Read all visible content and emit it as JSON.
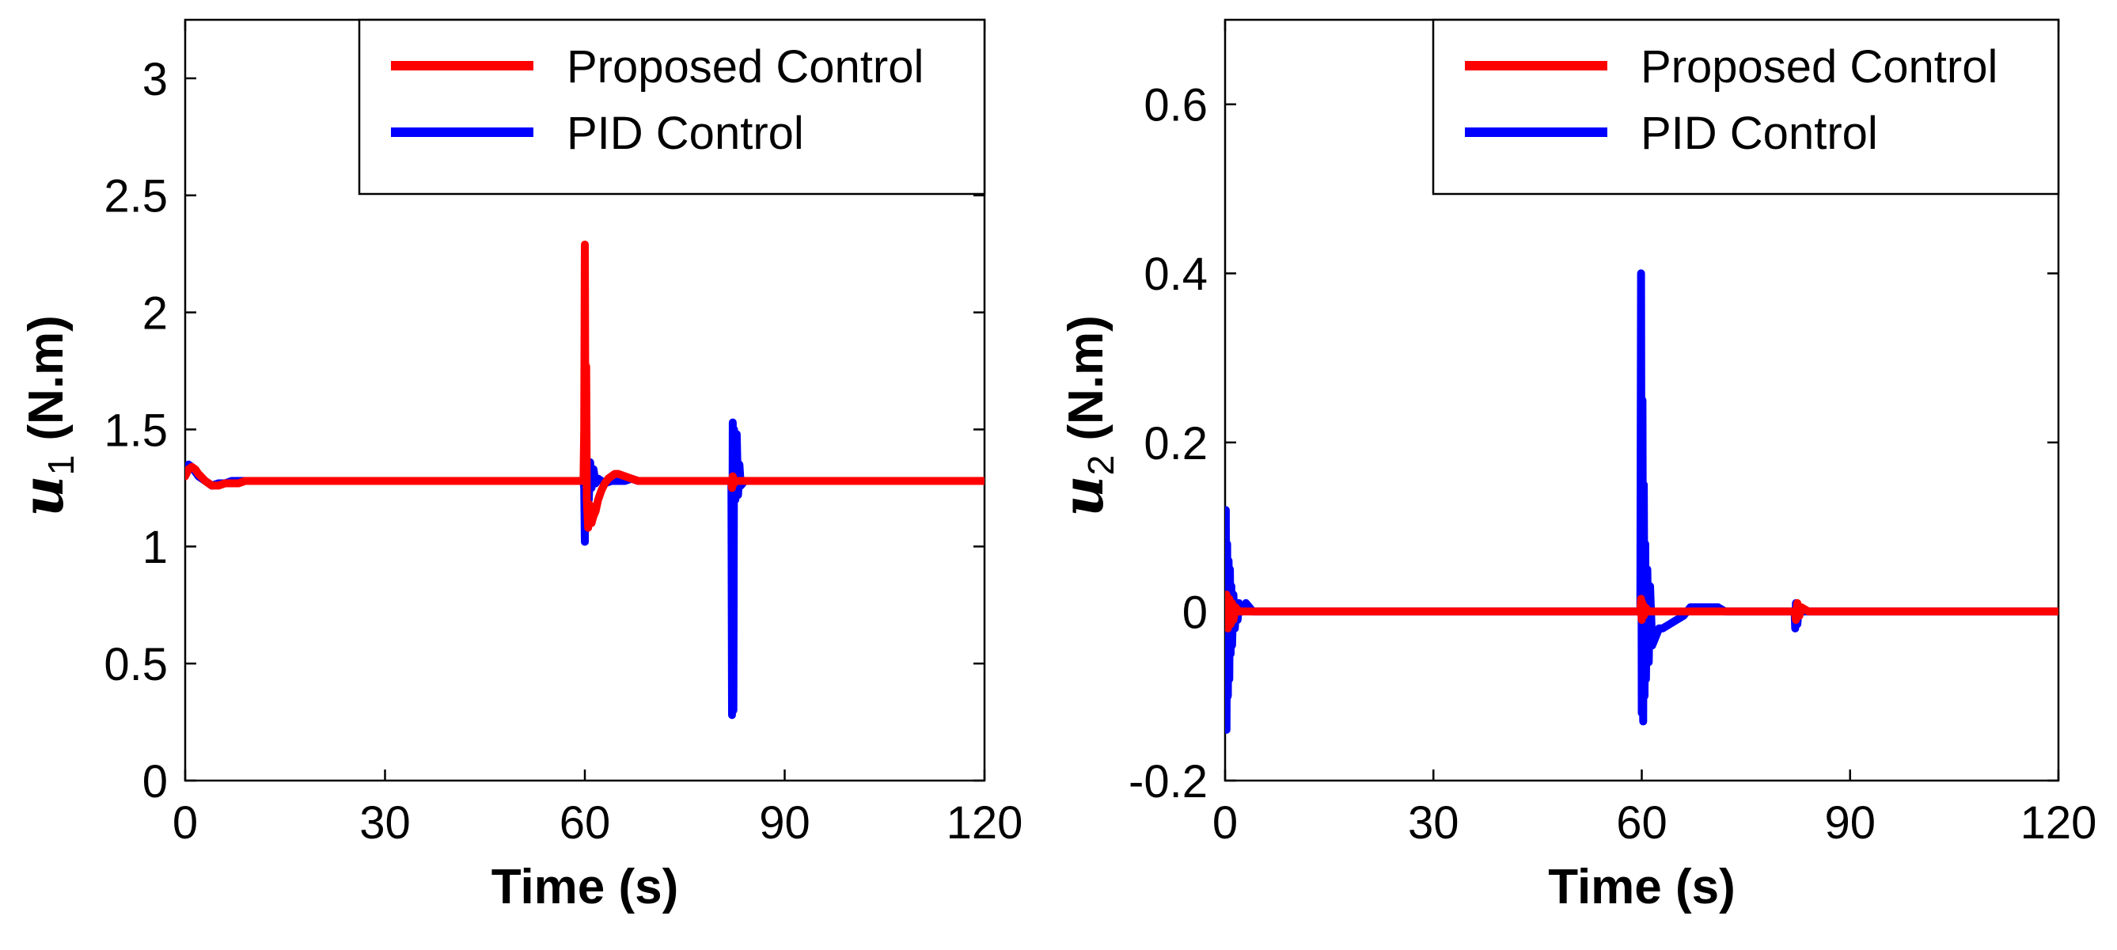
{
  "chart_data": [
    {
      "type": "line",
      "title": "",
      "xlabel": "Time (s)",
      "ylabel_symbol": "u",
      "ylabel_subscript": "1",
      "ylabel_unit": "(N.m)",
      "xlim": [
        0,
        120
      ],
      "ylim": [
        0,
        3.25
      ],
      "xticks": [
        0,
        30,
        60,
        90,
        120
      ],
      "xtick_labels": [
        "0",
        "30",
        "60",
        "90",
        "120"
      ],
      "yticks": [
        0,
        0.5,
        1,
        1.5,
        2,
        2.5,
        3
      ],
      "ytick_labels": [
        "0",
        "0.5",
        "1",
        "1.5",
        "2",
        "2.5",
        "3"
      ],
      "legend_position": "top-right",
      "grid": false,
      "series": [
        {
          "name": "PID Control",
          "color": "#0000ff",
          "x": [
            0,
            0.5,
            1,
            1.5,
            2,
            3,
            4,
            5,
            6,
            7,
            8,
            9,
            10,
            59.8,
            59.9,
            60.0,
            60.1,
            60.2,
            60.4,
            60.6,
            60.8,
            61.0,
            61.3,
            61.6,
            62,
            62.5,
            63,
            64,
            65,
            66,
            67,
            68,
            82.0,
            82.1,
            82.2,
            82.3,
            82.4,
            82.6,
            82.8,
            83.0,
            83.2,
            83.4,
            84,
            120
          ],
          "y": [
            1.32,
            1.35,
            1.34,
            1.32,
            1.3,
            1.28,
            1.26,
            1.27,
            1.27,
            1.28,
            1.28,
            1.28,
            1.28,
            1.28,
            1.25,
            1.02,
            1.36,
            1.12,
            1.32,
            1.2,
            1.36,
            1.25,
            1.33,
            1.27,
            1.29,
            1.28,
            1.27,
            1.28,
            1.28,
            1.28,
            1.29,
            1.28,
            1.28,
            0.28,
            1.53,
            0.3,
            1.5,
            1.2,
            1.48,
            1.22,
            1.35,
            1.26,
            1.28,
            1.28
          ]
        },
        {
          "name": "Proposed Control",
          "color": "#ff0000",
          "x": [
            0,
            0.5,
            1,
            1.5,
            2,
            3,
            4,
            5,
            6,
            7,
            8,
            9,
            10,
            59.8,
            59.9,
            60.0,
            60.1,
            60.2,
            60.3,
            60.5,
            60.7,
            61.0,
            61.3,
            61.6,
            62,
            62.5,
            63,
            63.5,
            64,
            64.5,
            65,
            66,
            67,
            68,
            82.0,
            82.1,
            82.2,
            82.4,
            82.6,
            83.0,
            84,
            120
          ],
          "y": [
            1.3,
            1.33,
            1.34,
            1.33,
            1.31,
            1.28,
            1.26,
            1.26,
            1.27,
            1.27,
            1.27,
            1.28,
            1.28,
            1.28,
            1.5,
            2.29,
            1.3,
            1.77,
            1.2,
            1.08,
            1.18,
            1.1,
            1.13,
            1.15,
            1.2,
            1.24,
            1.27,
            1.29,
            1.3,
            1.31,
            1.31,
            1.3,
            1.29,
            1.28,
            1.28,
            1.25,
            1.3,
            1.27,
            1.28,
            1.28,
            1.28,
            1.28
          ]
        }
      ]
    },
    {
      "type": "line",
      "title": "",
      "xlabel": "Time (s)",
      "ylabel_symbol": "u",
      "ylabel_subscript": "2",
      "ylabel_unit": "(N.m)",
      "xlim": [
        0,
        120
      ],
      "ylim": [
        -0.2,
        0.7
      ],
      "xticks": [
        0,
        30,
        60,
        90,
        120
      ],
      "xtick_labels": [
        "0",
        "30",
        "60",
        "90",
        "120"
      ],
      "yticks": [
        -0.2,
        0,
        0.2,
        0.4,
        0.6
      ],
      "ytick_labels": [
        "-0.2",
        "0",
        "0.2",
        "0.4",
        "0.6"
      ],
      "legend_position": "top-right",
      "grid": false,
      "series": [
        {
          "name": "PID Control",
          "color": "#0000ff",
          "x": [
            0,
            0.1,
            0.2,
            0.3,
            0.4,
            0.5,
            0.6,
            0.7,
            0.8,
            0.9,
            1.0,
            1.2,
            1.4,
            1.6,
            1.8,
            2.0,
            2.5,
            3,
            4,
            5,
            59.8,
            59.9,
            60.0,
            60.1,
            60.2,
            60.3,
            60.4,
            60.5,
            60.6,
            60.8,
            61.0,
            61.2,
            61.5,
            62,
            62.5,
            63,
            64,
            65,
            66,
            67,
            68,
            70,
            71,
            72,
            82.0,
            82.1,
            82.2,
            82.4,
            82.6,
            83,
            84,
            120
          ],
          "y": [
            0,
            0.12,
            -0.14,
            0.08,
            -0.1,
            0.06,
            -0.08,
            0.05,
            -0.05,
            0.03,
            -0.04,
            0.02,
            -0.02,
            0.01,
            -0.01,
            0.01,
            0,
            0.01,
            0,
            0,
            0,
            0.4,
            -0.12,
            0.25,
            -0.13,
            0.15,
            -0.1,
            0.08,
            -0.08,
            0.05,
            -0.06,
            0.03,
            -0.04,
            -0.03,
            -0.02,
            -0.02,
            -0.015,
            -0.01,
            -0.005,
            0.005,
            0.005,
            0.005,
            0.005,
            0,
            0,
            -0.02,
            0.01,
            -0.015,
            0.005,
            0,
            0,
            0
          ]
        },
        {
          "name": "Proposed Control",
          "color": "#ff0000",
          "x": [
            0,
            0.2,
            0.4,
            0.6,
            0.8,
            1.0,
            1.2,
            1.5,
            2,
            3,
            5,
            59.8,
            59.9,
            60.0,
            60.1,
            60.3,
            60.5,
            61,
            62,
            82.0,
            82.2,
            82.4,
            82.7,
            83,
            84,
            120
          ],
          "y": [
            0,
            0.02,
            -0.02,
            0.015,
            -0.015,
            0.01,
            -0.01,
            0.005,
            0,
            0,
            0,
            0,
            0.015,
            -0.01,
            0.01,
            -0.005,
            0.005,
            0,
            0,
            0,
            -0.01,
            0.01,
            -0.005,
            0.005,
            0,
            0
          ]
        }
      ]
    }
  ]
}
